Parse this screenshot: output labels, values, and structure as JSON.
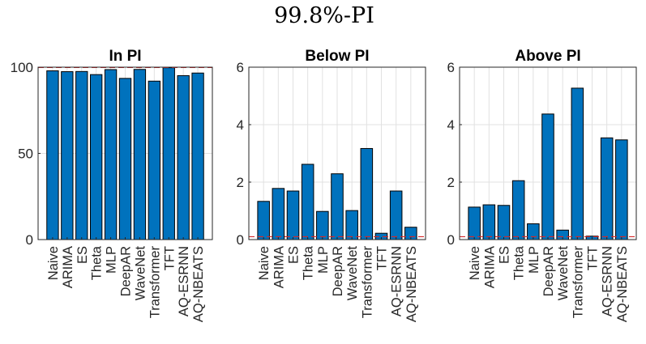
{
  "figure": {
    "title": "99.8%-PI"
  },
  "chart_data": [
    {
      "type": "bar",
      "title": "In PI",
      "categories": [
        "Naive",
        "ARIMA",
        "ES",
        "Theta",
        "MLP",
        "DeepAR",
        "WaveNet",
        "Transformer",
        "TFT",
        "AQ-ESRNN",
        "AQ-NBEATS"
      ],
      "values": [
        97.9,
        97.4,
        97.5,
        95.7,
        98.6,
        93.5,
        98.7,
        91.9,
        99.7,
        95.1,
        96.6
      ],
      "ylim": [
        0,
        100
      ],
      "yticks": [
        0,
        50,
        100
      ],
      "ytick_labels": [
        "0",
        "50",
        "100"
      ],
      "reference_line": 99.8,
      "grid": true
    },
    {
      "type": "bar",
      "title": "Below PI",
      "categories": [
        "Naive",
        "ARIMA",
        "ES",
        "Theta",
        "MLP",
        "DeepAR",
        "WaveNet",
        "Transformer",
        "TFT",
        "AQ-ESRNN",
        "AQ-NBEATS"
      ],
      "values": [
        1.33,
        1.78,
        1.69,
        2.62,
        0.98,
        2.29,
        1.01,
        3.17,
        0.22,
        1.69,
        0.43
      ],
      "ylim": [
        0,
        6
      ],
      "yticks": [
        0,
        2,
        4,
        6
      ],
      "ytick_labels": [
        "0",
        "2",
        "4",
        "6"
      ],
      "reference_line": 0.1,
      "grid": true
    },
    {
      "type": "bar",
      "title": "Above PI",
      "categories": [
        "Naive",
        "ARIMA",
        "ES",
        "Theta",
        "MLP",
        "DeepAR",
        "WaveNet",
        "Transformer",
        "TFT",
        "AQ-ESRNN",
        "AQ-NBEATS"
      ],
      "values": [
        1.13,
        1.21,
        1.19,
        2.05,
        0.55,
        4.37,
        0.33,
        5.27,
        0.12,
        3.54,
        3.47
      ],
      "ylim": [
        0,
        6
      ],
      "yticks": [
        0,
        2,
        4,
        6
      ],
      "ytick_labels": [
        "0",
        "2",
        "4",
        "6"
      ],
      "reference_line": 0.1,
      "grid": true
    }
  ],
  "colors": {
    "bar": "#0072bd",
    "reference": "#d62728",
    "grid": "#e1e1e1"
  }
}
